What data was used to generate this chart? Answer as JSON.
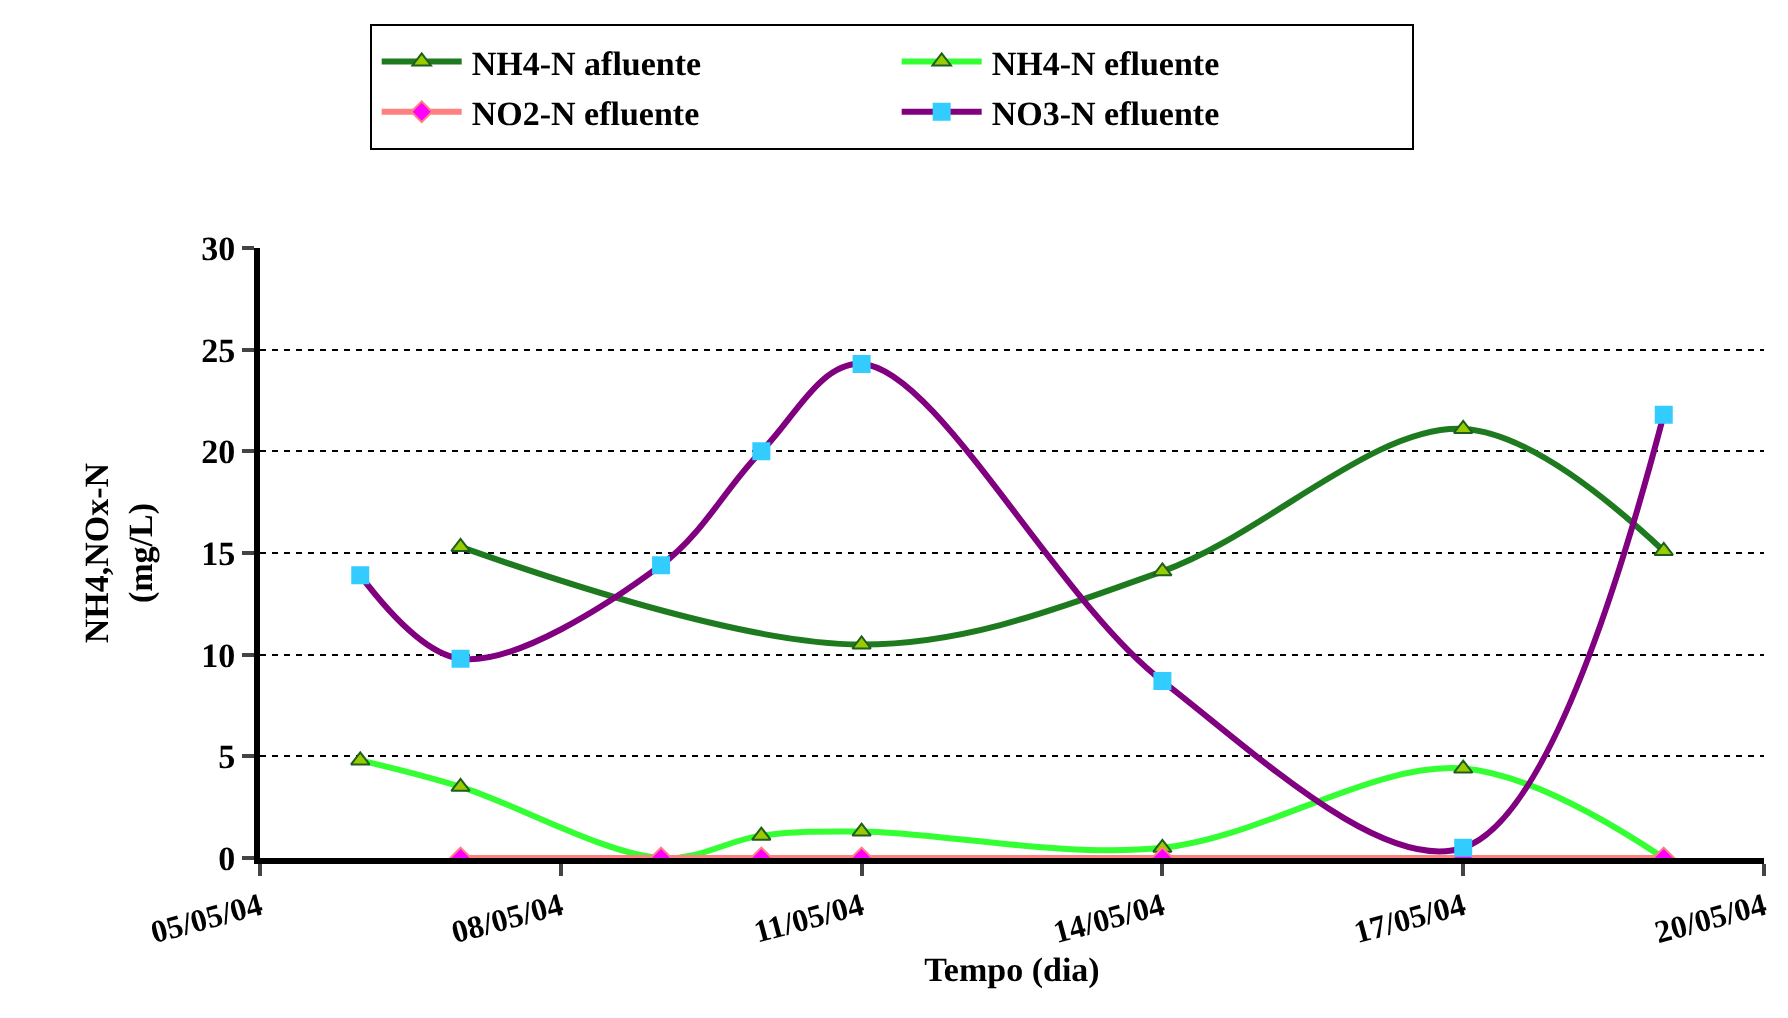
{
  "chart_data": {
    "type": "line",
    "xlabel": "Tempo (dia)",
    "ylabel": "NH4,NOx-N\n(mg/L)",
    "x": [
      "--05-06",
      "--05-07",
      "--05-09",
      "--05-10",
      "--05-11",
      "--05-14",
      "--05-17",
      "--05-19"
    ],
    "series": [
      {
        "name": "NH4-N afluente",
        "color": "#1e7a1e",
        "marker": "triangle",
        "values": [
          null,
          15.3,
          null,
          null,
          10.5,
          14.1,
          21.1,
          15.1
        ]
      },
      {
        "name": "NH4-N efluente",
        "color": "#33ff33",
        "marker": "triangle",
        "values": [
          4.8,
          3.5,
          0,
          1.1,
          1.3,
          0.5,
          4.4,
          0
        ]
      },
      {
        "name": "NO2-N efluente",
        "color": "#ff8080",
        "marker": "diamond",
        "values": [
          null,
          0,
          0,
          0,
          0,
          0,
          0,
          0
        ]
      },
      {
        "name": "NO3-N efluente",
        "color": "#800080",
        "marker": "square",
        "values": [
          13.9,
          9.8,
          14.4,
          20.0,
          24.3,
          8.7,
          0.5,
          21.8
        ]
      }
    ],
    "xlim": [
      "--05-05",
      "--05-20"
    ],
    "xticks": [
      {
        "value": "--05-05",
        "label": "05/05/04"
      },
      {
        "value": "--05-08",
        "label": "08/05/04"
      },
      {
        "value": "--05-11",
        "label": "11/05/04"
      },
      {
        "value": "--05-14",
        "label": "14/05/04"
      },
      {
        "value": "--05-17",
        "label": "17/05/04"
      },
      {
        "value": "--05-20",
        "label": "20/05/04"
      }
    ],
    "ylim": [
      0,
      30
    ],
    "yticks": [
      0,
      5,
      10,
      15,
      20,
      25,
      30
    ],
    "grid": "y",
    "legend": "top",
    "line_style": "solid"
  }
}
